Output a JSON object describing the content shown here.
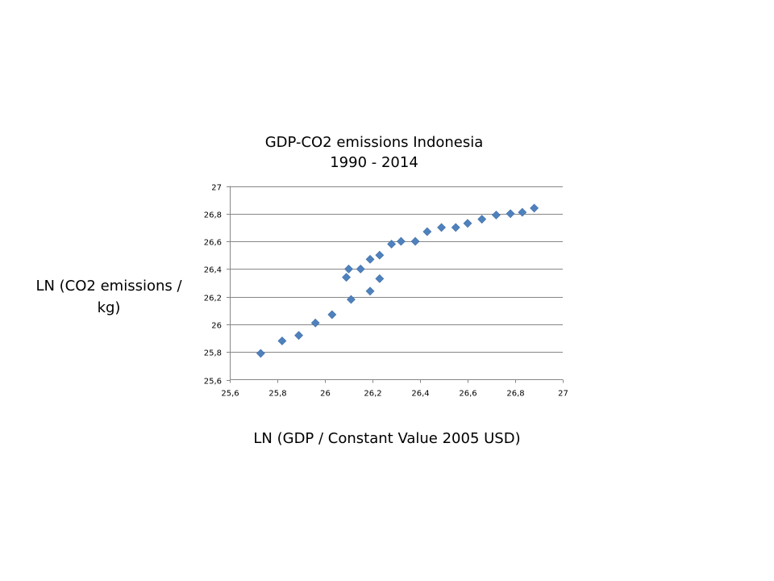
{
  "chart_data": {
    "type": "scatter",
    "title": "GDP-CO2 emissions Indonesia",
    "subtitle": "1990 - 2014",
    "xlabel": "LN (GDP / Constant Value 2005 USD)",
    "ylabel_lines": [
      "LN (CO2 emissions /",
      "kg)"
    ],
    "xlim": [
      25.6,
      27
    ],
    "ylim": [
      25.6,
      27
    ],
    "x_ticks": [
      25.6,
      25.8,
      26,
      26.2,
      26.4,
      26.6,
      26.8,
      27
    ],
    "y_ticks": [
      25.6,
      25.8,
      26,
      26.2,
      26.4,
      26.6,
      26.8,
      27
    ],
    "x_tick_labels": [
      "25,6",
      "25,8",
      "26",
      "26,2",
      "26,4",
      "26,6",
      "26,8",
      "27"
    ],
    "y_tick_labels": [
      "25,6",
      "25,8",
      "26",
      "26,2",
      "26,4",
      "26,6",
      "26,8",
      "27"
    ],
    "grid": "horizontal",
    "legend": "none",
    "marker": "diamond",
    "marker_color": "#4F81BD",
    "gridline_color": "#868686",
    "series": [
      {
        "name": "Indonesia",
        "points": [
          {
            "x": 25.73,
            "y": 25.79
          },
          {
            "x": 25.82,
            "y": 25.88
          },
          {
            "x": 25.89,
            "y": 25.92
          },
          {
            "x": 25.96,
            "y": 26.01
          },
          {
            "x": 26.03,
            "y": 26.07
          },
          {
            "x": 26.11,
            "y": 26.18
          },
          {
            "x": 26.19,
            "y": 26.24
          },
          {
            "x": 26.23,
            "y": 26.33
          },
          {
            "x": 26.09,
            "y": 26.34
          },
          {
            "x": 26.1,
            "y": 26.4
          },
          {
            "x": 26.15,
            "y": 26.4
          },
          {
            "x": 26.19,
            "y": 26.47
          },
          {
            "x": 26.23,
            "y": 26.5
          },
          {
            "x": 26.28,
            "y": 26.58
          },
          {
            "x": 26.32,
            "y": 26.6
          },
          {
            "x": 26.38,
            "y": 26.6
          },
          {
            "x": 26.43,
            "y": 26.67
          },
          {
            "x": 26.49,
            "y": 26.7
          },
          {
            "x": 26.55,
            "y": 26.7
          },
          {
            "x": 26.6,
            "y": 26.73
          },
          {
            "x": 26.66,
            "y": 26.76
          },
          {
            "x": 26.72,
            "y": 26.79
          },
          {
            "x": 26.78,
            "y": 26.8
          },
          {
            "x": 26.83,
            "y": 26.81
          },
          {
            "x": 26.88,
            "y": 26.84
          }
        ]
      }
    ]
  }
}
